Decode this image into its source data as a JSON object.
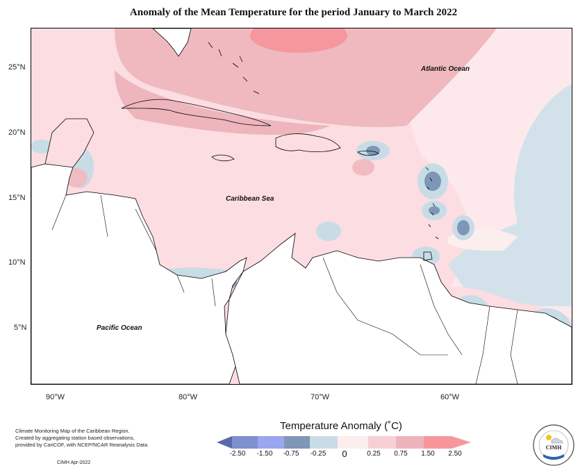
{
  "title": "Anomaly of the Mean Temperature for the period January to March 2022",
  "axes": {
    "latitude_labels": [
      "25°N",
      "20°N",
      "15°N",
      "10°N",
      "5°N"
    ],
    "longitude_labels": [
      "90°W",
      "80°W",
      "70°W",
      "60°W"
    ]
  },
  "map_labels": {
    "atlantic": "Atlantic Ocean",
    "caribbean": "Caribbean Sea",
    "pacific": "Pacific Ocean"
  },
  "legend": {
    "title": "Temperature Anomaly (˚C)",
    "tick_labels": [
      "-2.50",
      "-1.50",
      "-0.75",
      "-0.25",
      "0",
      "0.25",
      "0.75",
      "1.50",
      "2.50"
    ],
    "colors": [
      "#5a6aa8",
      "#7f8fd0",
      "#9aa6ee",
      "#7f97b6",
      "#c8dce6",
      "#fdeeee",
      "#f6d0d6",
      "#eeb4bb",
      "#f7979c",
      "#f7979c"
    ]
  },
  "source": {
    "lines": [
      "Climate Monitoring Map of the Caribbean Region.",
      "Created by aggregating station based observations,",
      "provided by CariCOF, with NCEP/NCAR Reanalysis Data."
    ],
    "credit": "CIMH Apr-2022"
  },
  "logo": {
    "text": "CIMH"
  }
}
